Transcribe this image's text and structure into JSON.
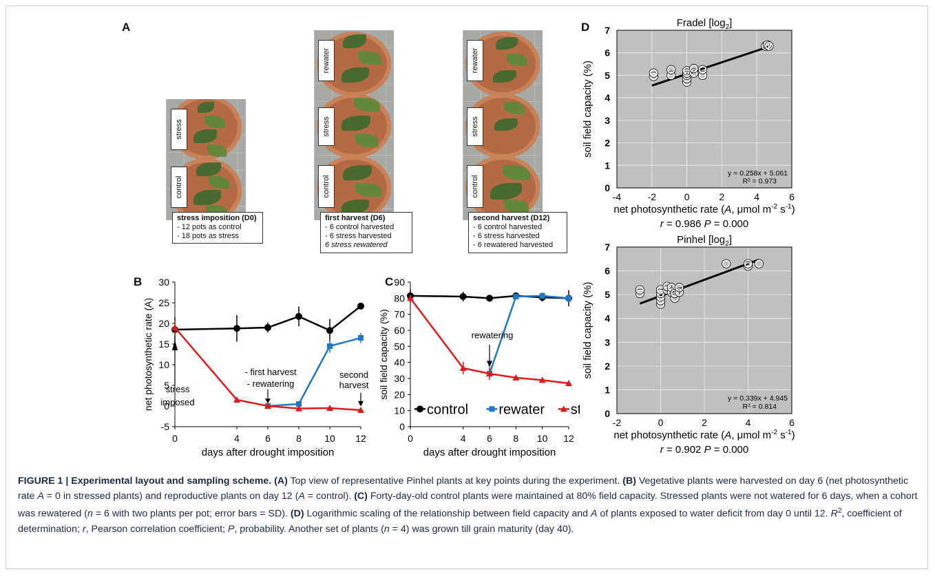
{
  "panels": {
    "a": "A",
    "b": "B",
    "c": "C",
    "d": "D"
  },
  "panel_a": {
    "photos": [
      {
        "labels": [
          "stress",
          "control"
        ],
        "title": "stress imposition (D0)",
        "lines": [
          "- 12 pots as control",
          "- 18 pots as stress"
        ],
        "italic_line": ""
      },
      {
        "labels": [
          "rewater",
          "stress",
          "control"
        ],
        "title": "first harvest (D6)",
        "lines": [
          "- 6 control harvested",
          "- 6 stress harvested"
        ],
        "italic_line": "6 stress rewatered"
      },
      {
        "labels": [
          "rewater",
          "stress",
          "control"
        ],
        "title": "second harvest (D12)",
        "lines": [
          "- 6 control harvested",
          "- 6 stress harvested",
          "- 6 rewatered harvested"
        ],
        "italic_line": ""
      }
    ]
  },
  "chart_data": [
    {
      "id": "B",
      "type": "line",
      "x": [
        0,
        4,
        6,
        8,
        10,
        12
      ],
      "xlabel": "days after drought imposition",
      "ylabel": "net photosynthetic rate (A)",
      "ylim": [
        -5,
        30
      ],
      "yticks": [
        -5,
        0,
        5,
        10,
        15,
        20,
        25,
        30
      ],
      "xticks": [
        0,
        4,
        6,
        8,
        10,
        12
      ],
      "series": [
        {
          "key": "control",
          "color": "#000000",
          "marker": "circle",
          "x": [
            0,
            4,
            6,
            8,
            10,
            12
          ],
          "values": [
            18.5,
            18.8,
            19.0,
            21.7,
            18.3,
            24.2
          ],
          "err": [
            3.0,
            3.2,
            1.2,
            2.4,
            2.8,
            0.8
          ]
        },
        {
          "key": "rewater",
          "color": "#1f77c8",
          "marker": "square",
          "x": [
            6,
            8,
            10,
            12
          ],
          "values": [
            0.0,
            0.5,
            14.5,
            16.5
          ],
          "err": [
            0.3,
            0.5,
            1.6,
            1.2
          ]
        },
        {
          "key": "stress",
          "color": "#e01a1a",
          "marker": "triangle",
          "x": [
            0,
            4,
            6,
            8,
            10,
            12
          ],
          "values": [
            19.0,
            1.5,
            0.0,
            -0.6,
            -0.5,
            -1.0
          ],
          "err": [
            2.0,
            0.4,
            0.5,
            0.3,
            0.3,
            0.3
          ]
        }
      ],
      "annotations": [
        {
          "text": [
            "stress",
            "imposed"
          ]
        },
        {
          "text": [
            "- first harvest",
            "- rewatering"
          ]
        },
        {
          "text": [
            "second",
            "harvest"
          ]
        }
      ]
    },
    {
      "id": "C",
      "type": "line",
      "x": [
        0,
        4,
        6,
        8,
        10,
        12
      ],
      "xlabel": "days after drought imposition",
      "ylabel": "soil field capacity (%)",
      "ylim": [
        0,
        90
      ],
      "yticks": [
        0,
        10,
        20,
        30,
        40,
        50,
        60,
        70,
        80,
        90
      ],
      "xticks": [
        0,
        4,
        6,
        8,
        10,
        12
      ],
      "series": [
        {
          "key": "control",
          "name": "control",
          "color": "#000000",
          "marker": "circle",
          "x": [
            0,
            4,
            6,
            8,
            10,
            12
          ],
          "values": [
            81.5,
            81.0,
            80.0,
            81.5,
            80.5,
            80.0
          ],
          "err": [
            4.0,
            3.0,
            1.5,
            1.0,
            2.5,
            5.0
          ]
        },
        {
          "key": "rewater",
          "name": "rewater",
          "color": "#1f77c8",
          "marker": "square",
          "x": [
            6,
            8,
            10,
            12
          ],
          "values": [
            33.0,
            81.0,
            81.5,
            80.0
          ],
          "err": [
            3.0,
            1.5,
            2.0,
            2.5
          ]
        },
        {
          "key": "stress",
          "name": "stress",
          "color": "#e01a1a",
          "marker": "triangle",
          "x": [
            0,
            4,
            6,
            8,
            10,
            12
          ],
          "values": [
            80.0,
            36.5,
            33.0,
            30.5,
            29.0,
            27.0
          ],
          "err": [
            2.0,
            4.0,
            4.0,
            1.0,
            1.0,
            1.0
          ]
        }
      ],
      "annotations": [
        {
          "text": [
            "rewatering"
          ]
        }
      ],
      "legend": "bottom"
    },
    {
      "id": "D1",
      "type": "scatter",
      "title": "Fradel [log",
      "title_sub": "2",
      "title_end": "]",
      "xlim": [
        -4,
        6
      ],
      "ylim": [
        0,
        7
      ],
      "xticks": [
        -4,
        -2,
        0,
        2,
        4,
        6
      ],
      "yticks": [
        0,
        1,
        2,
        3,
        4,
        5,
        6,
        7
      ],
      "ylabel": "soil field capacity (%)",
      "xlabel_pre": "net photosynthetic rate (",
      "xlabel_a": "A",
      "xlabel_post": ", μmol m",
      "xlabel_exp1": "-2",
      "xlabel_mid": " s",
      "xlabel_exp2": "-1",
      "xlabel_end": ")",
      "equation": "y = 0.258x + 5.061",
      "r2": "R² = 0.973",
      "stats_r": "r",
      "stats_r_val": " = 0.986 ",
      "stats_p": "P",
      "stats_p_val": " = 0.000",
      "fit": {
        "slope": 0.258,
        "intercept": 5.061,
        "x_range": [
          -2,
          4.7
        ]
      },
      "points": [
        [
          -1.9,
          4.95
        ],
        [
          -1.9,
          5.1
        ],
        [
          -0.9,
          5.0
        ],
        [
          -0.9,
          5.25
        ],
        [
          0,
          4.7
        ],
        [
          0,
          4.85
        ],
        [
          0,
          5.0
        ],
        [
          0,
          5.1
        ],
        [
          0,
          5.2
        ],
        [
          0.4,
          5.1
        ],
        [
          0.4,
          5.3
        ],
        [
          0.9,
          5.0
        ],
        [
          0.9,
          5.25
        ],
        [
          4.5,
          6.3
        ],
        [
          4.6,
          6.35
        ],
        [
          4.7,
          6.3
        ]
      ]
    },
    {
      "id": "D2",
      "type": "scatter",
      "title": "Pinhel [log",
      "title_sub": "2",
      "title_end": "]",
      "xlim": [
        -2,
        6
      ],
      "ylim": [
        0,
        7
      ],
      "xticks": [
        -2,
        0,
        2,
        4,
        6
      ],
      "yticks": [
        0,
        1,
        2,
        3,
        4,
        5,
        6,
        7
      ],
      "ylabel": "soil field capacity (%)",
      "xlabel_pre": "net photosynthetic rate (",
      "xlabel_a": "A",
      "xlabel_post": ", μmol m",
      "xlabel_exp1": "-2",
      "xlabel_mid": " s",
      "xlabel_exp2": "-1",
      "xlabel_end": ")",
      "equation": "y = 0.339x + 4.945",
      "r2": "R² = 0.814",
      "stats_r": "r",
      "stats_r_val": " = 0.902 ",
      "stats_p": "P",
      "stats_p_val": " = 0.000",
      "fit": {
        "slope": 0.339,
        "intercept": 4.945,
        "x_range": [
          -0.95,
          4.5
        ]
      },
      "points": [
        [
          -0.95,
          5.05
        ],
        [
          -0.95,
          5.2
        ],
        [
          0,
          4.6
        ],
        [
          0,
          4.75
        ],
        [
          0,
          4.9
        ],
        [
          0,
          5.05
        ],
        [
          0,
          5.2
        ],
        [
          0.3,
          5.2
        ],
        [
          0.3,
          5.35
        ],
        [
          0.5,
          5.1
        ],
        [
          0.5,
          5.3
        ],
        [
          0.65,
          4.85
        ],
        [
          0.65,
          5.05
        ],
        [
          0.85,
          5.1
        ],
        [
          0.85,
          5.3
        ],
        [
          3.0,
          6.3
        ],
        [
          4.0,
          6.2
        ],
        [
          4.0,
          6.3
        ],
        [
          4.5,
          6.3
        ]
      ]
    }
  ],
  "caption": {
    "fig": "FIGURE 1 | Experimental layout and sampling scheme.",
    "a_tag": "(A)",
    "a_text": " Top view of representative Pinhel plants at key points during the experiment. ",
    "b_tag": "(B)",
    "b_text1": " Vegetative plants were harvested on day 6 (net photosynthetic rate ",
    "b_a1": "A",
    "b_text2": " = 0 in stressed plants) and reproductive plants on day 12 (",
    "b_a2": "A",
    "b_text3": " = control). ",
    "c_tag": "(C)",
    "c_text1": " Forty-day-old control plants were maintained at 80% field capacity. Stressed plants were not watered for 6 days, when a cohort was rewatered (",
    "c_n": "n",
    "c_text2": " = 6 with two plants per pot; error bars = SD). ",
    "d_tag": "(D)",
    "d_text1": " Logarithmic scaling of the relationship between field capacity and ",
    "d_a": "A",
    "d_text2": " of plants exposed to water deficit from day 0 until 12. ",
    "d_r2": "R",
    "d_r2_sup": "2",
    "d_text3": ", coefficient of determination; ",
    "d_r": "r",
    "d_text4": ", Pearson correlation coefficient; ",
    "d_p": "P",
    "d_text5": ", probability. Another set of plants (",
    "d_n": "n",
    "d_text6": " = 4) was grown till grain maturity (day 40)."
  }
}
